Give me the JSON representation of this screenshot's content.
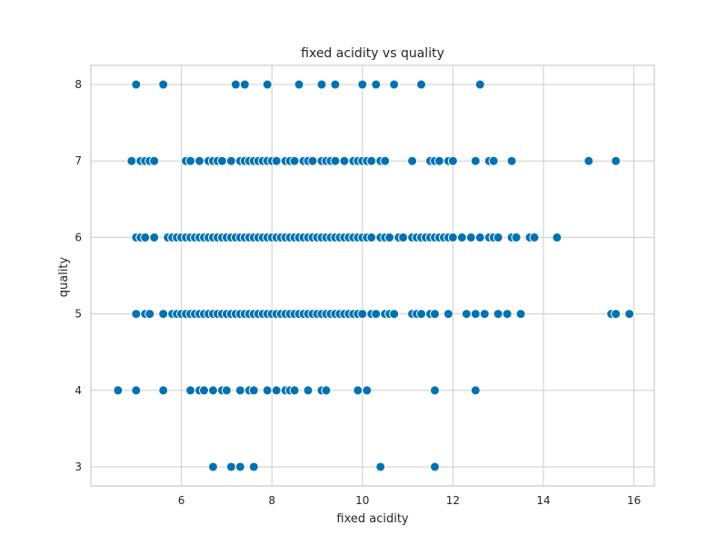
{
  "chart_data": {
    "type": "scatter",
    "title": "fixed acidity vs quality",
    "xlabel": "fixed acidity",
    "ylabel": "quality",
    "xlim": [
      4.0,
      16.45
    ],
    "ylim": [
      2.75,
      8.25
    ],
    "xticks": [
      6,
      8,
      10,
      12,
      14,
      16
    ],
    "yticks": [
      3,
      4,
      5,
      6,
      7,
      8
    ],
    "grid": true,
    "point_color": "#0072b2",
    "series": [
      {
        "values": [
          {
            "x": 5.0,
            "y": 8
          },
          {
            "x": 5.6,
            "y": 8
          },
          {
            "x": 7.2,
            "y": 8
          },
          {
            "x": 7.4,
            "y": 8
          },
          {
            "x": 7.9,
            "y": 8
          },
          {
            "x": 8.6,
            "y": 8
          },
          {
            "x": 9.1,
            "y": 8
          },
          {
            "x": 9.4,
            "y": 8
          },
          {
            "x": 10.0,
            "y": 8
          },
          {
            "x": 10.3,
            "y": 8
          },
          {
            "x": 10.7,
            "y": 8
          },
          {
            "x": 11.3,
            "y": 8
          },
          {
            "x": 12.6,
            "y": 8
          },
          {
            "x": 4.9,
            "y": 7
          },
          {
            "x": 5.1,
            "y": 7
          },
          {
            "x": 5.2,
            "y": 7
          },
          {
            "x": 5.3,
            "y": 7
          },
          {
            "x": 5.4,
            "y": 7
          },
          {
            "x": 6.1,
            "y": 7
          },
          {
            "x": 6.2,
            "y": 7
          },
          {
            "x": 6.4,
            "y": 7
          },
          {
            "x": 6.6,
            "y": 7
          },
          {
            "x": 6.7,
            "y": 7
          },
          {
            "x": 6.8,
            "y": 7
          },
          {
            "x": 6.9,
            "y": 7
          },
          {
            "x": 7.1,
            "y": 7
          },
          {
            "x": 7.3,
            "y": 7
          },
          {
            "x": 7.4,
            "y": 7
          },
          {
            "x": 7.5,
            "y": 7
          },
          {
            "x": 7.6,
            "y": 7
          },
          {
            "x": 7.7,
            "y": 7
          },
          {
            "x": 7.8,
            "y": 7
          },
          {
            "x": 7.9,
            "y": 7
          },
          {
            "x": 8.0,
            "y": 7
          },
          {
            "x": 8.1,
            "y": 7
          },
          {
            "x": 8.3,
            "y": 7
          },
          {
            "x": 8.4,
            "y": 7
          },
          {
            "x": 8.5,
            "y": 7
          },
          {
            "x": 8.7,
            "y": 7
          },
          {
            "x": 8.8,
            "y": 7
          },
          {
            "x": 8.9,
            "y": 7
          },
          {
            "x": 9.1,
            "y": 7
          },
          {
            "x": 9.2,
            "y": 7
          },
          {
            "x": 9.3,
            "y": 7
          },
          {
            "x": 9.4,
            "y": 7
          },
          {
            "x": 9.6,
            "y": 7
          },
          {
            "x": 9.8,
            "y": 7
          },
          {
            "x": 9.9,
            "y": 7
          },
          {
            "x": 10.0,
            "y": 7
          },
          {
            "x": 10.1,
            "y": 7
          },
          {
            "x": 10.2,
            "y": 7
          },
          {
            "x": 10.4,
            "y": 7
          },
          {
            "x": 10.5,
            "y": 7
          },
          {
            "x": 11.1,
            "y": 7
          },
          {
            "x": 11.5,
            "y": 7
          },
          {
            "x": 11.6,
            "y": 7
          },
          {
            "x": 11.7,
            "y": 7
          },
          {
            "x": 11.9,
            "y": 7
          },
          {
            "x": 12.0,
            "y": 7
          },
          {
            "x": 12.5,
            "y": 7
          },
          {
            "x": 12.8,
            "y": 7
          },
          {
            "x": 12.9,
            "y": 7
          },
          {
            "x": 13.3,
            "y": 7
          },
          {
            "x": 15.0,
            "y": 7
          },
          {
            "x": 15.6,
            "y": 7
          },
          {
            "x": 5.0,
            "y": 6
          },
          {
            "x": 5.1,
            "y": 6
          },
          {
            "x": 5.2,
            "y": 6
          },
          {
            "x": 5.4,
            "y": 6
          },
          {
            "x": 5.7,
            "y": 6
          },
          {
            "x": 5.8,
            "y": 6
          },
          {
            "x": 5.9,
            "y": 6
          },
          {
            "x": 6.0,
            "y": 6
          },
          {
            "x": 6.1,
            "y": 6
          },
          {
            "x": 6.2,
            "y": 6
          },
          {
            "x": 6.3,
            "y": 6
          },
          {
            "x": 6.4,
            "y": 6
          },
          {
            "x": 6.5,
            "y": 6
          },
          {
            "x": 6.6,
            "y": 6
          },
          {
            "x": 6.7,
            "y": 6
          },
          {
            "x": 6.8,
            "y": 6
          },
          {
            "x": 6.9,
            "y": 6
          },
          {
            "x": 7.0,
            "y": 6
          },
          {
            "x": 7.1,
            "y": 6
          },
          {
            "x": 7.2,
            "y": 6
          },
          {
            "x": 7.3,
            "y": 6
          },
          {
            "x": 7.4,
            "y": 6
          },
          {
            "x": 7.5,
            "y": 6
          },
          {
            "x": 7.6,
            "y": 6
          },
          {
            "x": 7.7,
            "y": 6
          },
          {
            "x": 7.8,
            "y": 6
          },
          {
            "x": 7.9,
            "y": 6
          },
          {
            "x": 8.0,
            "y": 6
          },
          {
            "x": 8.1,
            "y": 6
          },
          {
            "x": 8.2,
            "y": 6
          },
          {
            "x": 8.3,
            "y": 6
          },
          {
            "x": 8.4,
            "y": 6
          },
          {
            "x": 8.5,
            "y": 6
          },
          {
            "x": 8.6,
            "y": 6
          },
          {
            "x": 8.7,
            "y": 6
          },
          {
            "x": 8.8,
            "y": 6
          },
          {
            "x": 8.9,
            "y": 6
          },
          {
            "x": 9.0,
            "y": 6
          },
          {
            "x": 9.1,
            "y": 6
          },
          {
            "x": 9.2,
            "y": 6
          },
          {
            "x": 9.3,
            "y": 6
          },
          {
            "x": 9.4,
            "y": 6
          },
          {
            "x": 9.5,
            "y": 6
          },
          {
            "x": 9.6,
            "y": 6
          },
          {
            "x": 9.7,
            "y": 6
          },
          {
            "x": 9.8,
            "y": 6
          },
          {
            "x": 9.9,
            "y": 6
          },
          {
            "x": 10.0,
            "y": 6
          },
          {
            "x": 10.1,
            "y": 6
          },
          {
            "x": 10.2,
            "y": 6
          },
          {
            "x": 10.4,
            "y": 6
          },
          {
            "x": 10.5,
            "y": 6
          },
          {
            "x": 10.6,
            "y": 6
          },
          {
            "x": 10.8,
            "y": 6
          },
          {
            "x": 10.9,
            "y": 6
          },
          {
            "x": 11.1,
            "y": 6
          },
          {
            "x": 11.2,
            "y": 6
          },
          {
            "x": 11.3,
            "y": 6
          },
          {
            "x": 11.4,
            "y": 6
          },
          {
            "x": 11.5,
            "y": 6
          },
          {
            "x": 11.6,
            "y": 6
          },
          {
            "x": 11.7,
            "y": 6
          },
          {
            "x": 11.8,
            "y": 6
          },
          {
            "x": 11.9,
            "y": 6
          },
          {
            "x": 12.0,
            "y": 6
          },
          {
            "x": 12.2,
            "y": 6
          },
          {
            "x": 12.4,
            "y": 6
          },
          {
            "x": 12.6,
            "y": 6
          },
          {
            "x": 12.8,
            "y": 6
          },
          {
            "x": 12.9,
            "y": 6
          },
          {
            "x": 13.0,
            "y": 6
          },
          {
            "x": 13.3,
            "y": 6
          },
          {
            "x": 13.4,
            "y": 6
          },
          {
            "x": 13.7,
            "y": 6
          },
          {
            "x": 13.8,
            "y": 6
          },
          {
            "x": 14.3,
            "y": 6
          },
          {
            "x": 5.0,
            "y": 5
          },
          {
            "x": 5.2,
            "y": 5
          },
          {
            "x": 5.3,
            "y": 5
          },
          {
            "x": 5.6,
            "y": 5
          },
          {
            "x": 5.8,
            "y": 5
          },
          {
            "x": 5.9,
            "y": 5
          },
          {
            "x": 6.0,
            "y": 5
          },
          {
            "x": 6.1,
            "y": 5
          },
          {
            "x": 6.2,
            "y": 5
          },
          {
            "x": 6.3,
            "y": 5
          },
          {
            "x": 6.4,
            "y": 5
          },
          {
            "x": 6.5,
            "y": 5
          },
          {
            "x": 6.6,
            "y": 5
          },
          {
            "x": 6.7,
            "y": 5
          },
          {
            "x": 6.8,
            "y": 5
          },
          {
            "x": 6.9,
            "y": 5
          },
          {
            "x": 7.0,
            "y": 5
          },
          {
            "x": 7.1,
            "y": 5
          },
          {
            "x": 7.2,
            "y": 5
          },
          {
            "x": 7.3,
            "y": 5
          },
          {
            "x": 7.4,
            "y": 5
          },
          {
            "x": 7.5,
            "y": 5
          },
          {
            "x": 7.6,
            "y": 5
          },
          {
            "x": 7.7,
            "y": 5
          },
          {
            "x": 7.8,
            "y": 5
          },
          {
            "x": 7.9,
            "y": 5
          },
          {
            "x": 8.0,
            "y": 5
          },
          {
            "x": 8.1,
            "y": 5
          },
          {
            "x": 8.2,
            "y": 5
          },
          {
            "x": 8.3,
            "y": 5
          },
          {
            "x": 8.4,
            "y": 5
          },
          {
            "x": 8.5,
            "y": 5
          },
          {
            "x": 8.6,
            "y": 5
          },
          {
            "x": 8.7,
            "y": 5
          },
          {
            "x": 8.8,
            "y": 5
          },
          {
            "x": 8.9,
            "y": 5
          },
          {
            "x": 9.0,
            "y": 5
          },
          {
            "x": 9.1,
            "y": 5
          },
          {
            "x": 9.2,
            "y": 5
          },
          {
            "x": 9.3,
            "y": 5
          },
          {
            "x": 9.4,
            "y": 5
          },
          {
            "x": 9.5,
            "y": 5
          },
          {
            "x": 9.6,
            "y": 5
          },
          {
            "x": 9.7,
            "y": 5
          },
          {
            "x": 9.8,
            "y": 5
          },
          {
            "x": 9.9,
            "y": 5
          },
          {
            "x": 10.0,
            "y": 5
          },
          {
            "x": 10.2,
            "y": 5
          },
          {
            "x": 10.3,
            "y": 5
          },
          {
            "x": 10.5,
            "y": 5
          },
          {
            "x": 10.6,
            "y": 5
          },
          {
            "x": 10.7,
            "y": 5
          },
          {
            "x": 11.1,
            "y": 5
          },
          {
            "x": 11.2,
            "y": 5
          },
          {
            "x": 11.3,
            "y": 5
          },
          {
            "x": 11.5,
            "y": 5
          },
          {
            "x": 11.6,
            "y": 5
          },
          {
            "x": 11.9,
            "y": 5
          },
          {
            "x": 12.3,
            "y": 5
          },
          {
            "x": 12.5,
            "y": 5
          },
          {
            "x": 12.7,
            "y": 5
          },
          {
            "x": 13.0,
            "y": 5
          },
          {
            "x": 13.2,
            "y": 5
          },
          {
            "x": 13.5,
            "y": 5
          },
          {
            "x": 15.5,
            "y": 5
          },
          {
            "x": 15.6,
            "y": 5
          },
          {
            "x": 15.9,
            "y": 5
          },
          {
            "x": 4.6,
            "y": 4
          },
          {
            "x": 5.0,
            "y": 4
          },
          {
            "x": 5.6,
            "y": 4
          },
          {
            "x": 6.2,
            "y": 4
          },
          {
            "x": 6.4,
            "y": 4
          },
          {
            "x": 6.5,
            "y": 4
          },
          {
            "x": 6.7,
            "y": 4
          },
          {
            "x": 6.9,
            "y": 4
          },
          {
            "x": 7.0,
            "y": 4
          },
          {
            "x": 7.3,
            "y": 4
          },
          {
            "x": 7.5,
            "y": 4
          },
          {
            "x": 7.6,
            "y": 4
          },
          {
            "x": 7.9,
            "y": 4
          },
          {
            "x": 8.1,
            "y": 4
          },
          {
            "x": 8.3,
            "y": 4
          },
          {
            "x": 8.4,
            "y": 4
          },
          {
            "x": 8.5,
            "y": 4
          },
          {
            "x": 8.8,
            "y": 4
          },
          {
            "x": 9.1,
            "y": 4
          },
          {
            "x": 9.2,
            "y": 4
          },
          {
            "x": 9.9,
            "y": 4
          },
          {
            "x": 10.1,
            "y": 4
          },
          {
            "x": 11.6,
            "y": 4
          },
          {
            "x": 12.5,
            "y": 4
          },
          {
            "x": 6.7,
            "y": 3
          },
          {
            "x": 7.1,
            "y": 3
          },
          {
            "x": 7.3,
            "y": 3
          },
          {
            "x": 7.6,
            "y": 3
          },
          {
            "x": 10.4,
            "y": 3
          },
          {
            "x": 11.6,
            "y": 3
          }
        ]
      }
    ]
  }
}
